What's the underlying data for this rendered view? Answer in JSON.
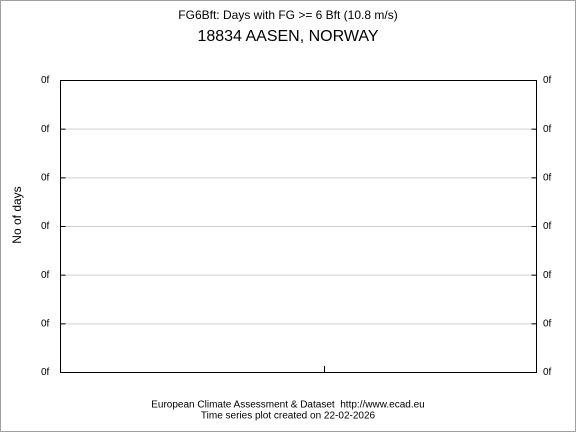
{
  "chart_data": {
    "type": "line",
    "title": "FG6Bft: Days with FG >= 6 Bft (10.8 m/s)",
    "subtitle": "18834 AASEN, NORWAY",
    "ylabel": "No of days",
    "ylim": [
      0,
      6
    ],
    "yticks": [
      {
        "value": 0,
        "label": "0f"
      },
      {
        "value": 1,
        "label": "0f"
      },
      {
        "value": 2,
        "label": "0f"
      },
      {
        "value": 3,
        "label": "0f"
      },
      {
        "value": 4,
        "label": "0f"
      },
      {
        "value": 5,
        "label": "0f"
      },
      {
        "value": 6,
        "label": "0f"
      }
    ],
    "grid": true,
    "source": "European Climate Assessment & Dataset  http://www.ecad.eu",
    "note": "Time series plot created on 22-02-2026"
  }
}
